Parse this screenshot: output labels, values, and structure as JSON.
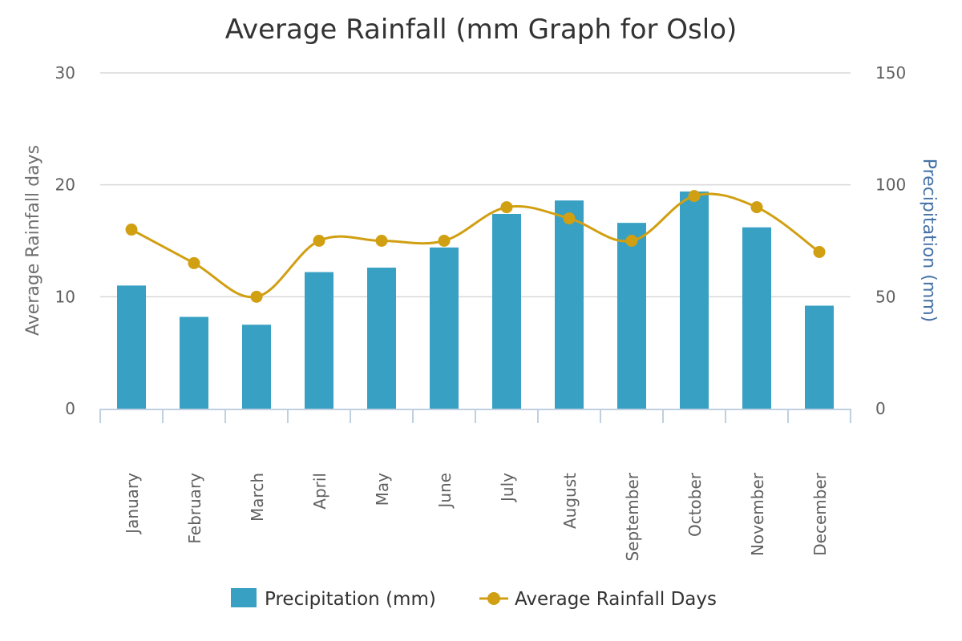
{
  "chart_data": {
    "type": "bar+line",
    "title": "Average Rainfall (mm Graph for Oslo)",
    "categories": [
      "January",
      "February",
      "March",
      "April",
      "May",
      "June",
      "July",
      "August",
      "September",
      "October",
      "November",
      "December"
    ],
    "series": [
      {
        "name": "Precipitation (mm)",
        "type": "bar",
        "axis": "right",
        "color": "#38a0c3",
        "values": [
          55,
          41,
          37.5,
          61,
          63,
          72,
          87,
          93,
          83,
          97,
          81,
          46
        ]
      },
      {
        "name": "Average Rainfall Days",
        "type": "line",
        "axis": "left",
        "color": "#d19f12",
        "values": [
          16,
          13,
          10,
          15,
          15,
          15,
          18,
          17,
          15,
          19,
          18,
          14
        ]
      }
    ],
    "y_left": {
      "label": "Average Rainfall days",
      "min": 0,
      "max": 30,
      "ticks": [
        0,
        10,
        20,
        30
      ]
    },
    "y_right": {
      "label": "Precipitation (mm)",
      "min": 0,
      "max": 150,
      "ticks": [
        0,
        50,
        100,
        150
      ]
    },
    "grid": true,
    "legend": "bottom-center"
  }
}
